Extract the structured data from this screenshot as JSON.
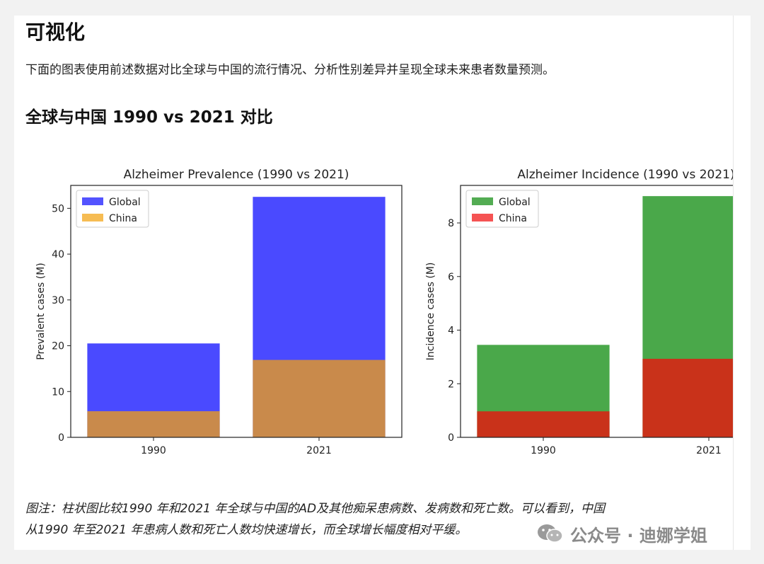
{
  "section": {
    "title": "可视化",
    "description": "下面的图表使用前述数据对比全球与中国的流行情况、分析性别差异并呈现全球未来患者数量预测。",
    "subtitle": "全球与中国 1990 vs 2021 对比"
  },
  "chart_data": [
    {
      "type": "bar",
      "title": "Alzheimer Prevalence (1990 vs 2021)",
      "xlabel": "",
      "ylabel": "Prevalent cases (M)",
      "categories": [
        "1990",
        "2021"
      ],
      "ylim": [
        0,
        55
      ],
      "yticks": [
        0,
        10,
        20,
        30,
        40,
        50
      ],
      "grid": false,
      "legend": "top-left",
      "series": [
        {
          "name": "Global",
          "values": [
            20.5,
            52.5
          ],
          "color": "#4a4aff"
        },
        {
          "name": "China",
          "values": [
            5.7,
            16.9
          ],
          "color": "#f5b84a"
        }
      ],
      "overlap_color": "#c98a4b"
    },
    {
      "type": "bar",
      "title": "Alzheimer Incidence (1990 vs 2021)",
      "xlabel": "",
      "ylabel": "Incidence cases (M)",
      "categories": [
        "1990",
        "2021"
      ],
      "ylim": [
        0,
        9.4
      ],
      "yticks": [
        0,
        2,
        4,
        6,
        8
      ],
      "grid": false,
      "legend": "top-left",
      "series": [
        {
          "name": "Global",
          "values": [
            3.45,
            9.0
          ],
          "color": "#4aa84a"
        },
        {
          "name": "China",
          "values": [
            0.97,
            2.93
          ],
          "color": "#f44a4a"
        }
      ],
      "overlap_color": "#c9321a"
    }
  ],
  "caption": {
    "line1": "图注：柱状图比较1990 年和2021 年全球与中国的AD及其他痴呆患病数、发病数和死亡数。可以看到，中国",
    "line2": "从1990 年至2021 年患病人数和死亡人数均快速增长，而全球增长幅度相对平缓。"
  },
  "watermark": {
    "text": "公众号 · 迪娜学姐",
    "icon": "wechat-icon"
  }
}
